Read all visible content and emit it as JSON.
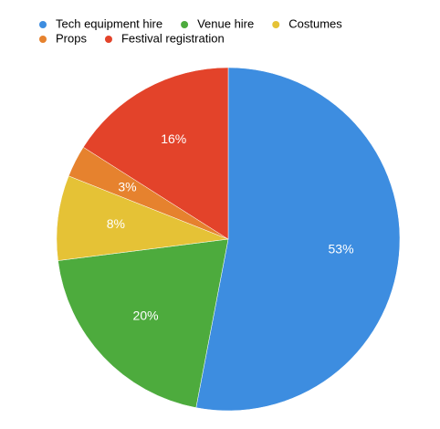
{
  "chart_data": {
    "type": "pie",
    "categories": [
      "Tech equipment hire",
      "Venue hire",
      "Costumes",
      "Props",
      "Festival registration"
    ],
    "values": [
      53,
      20,
      8,
      3,
      16
    ],
    "value_labels": [
      "53%",
      "20%",
      "8%",
      "3%",
      "16%"
    ],
    "colors": [
      "#3d8de0",
      "#4dab3d",
      "#e5c236",
      "#e6822e",
      "#e3432a"
    ],
    "legend": "top-left"
  }
}
